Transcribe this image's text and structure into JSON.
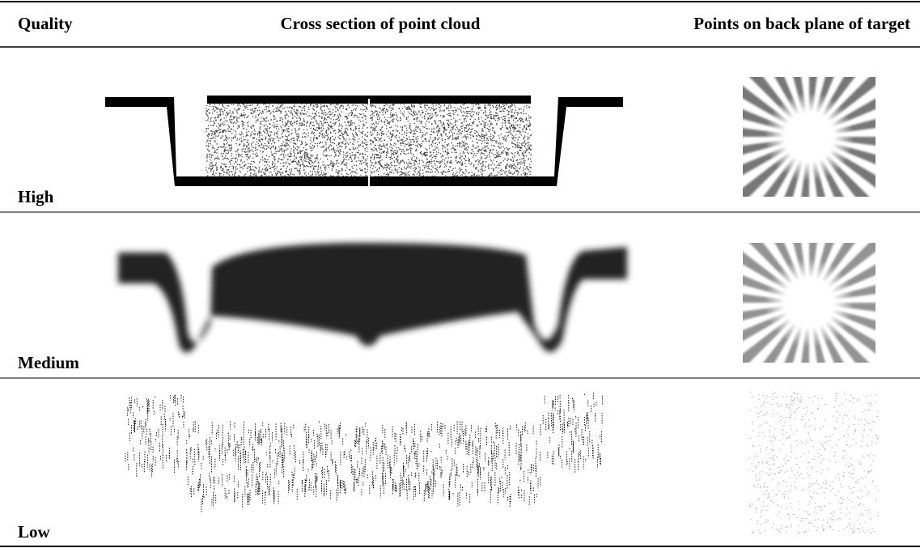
{
  "table": {
    "header": [
      "Quality",
      "Cross section of point cloud",
      "Points on back plane of target"
    ],
    "rows": [
      [
        "High"
      ],
      [
        "Medium"
      ],
      [
        "Low"
      ]
    ]
  }
}
